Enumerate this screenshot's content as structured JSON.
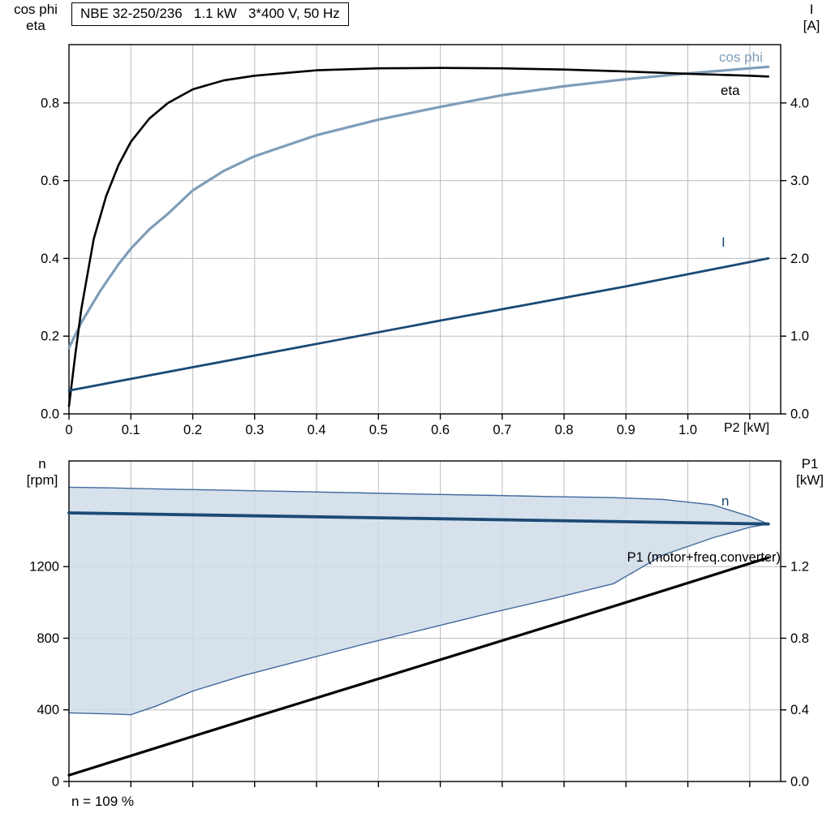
{
  "title_box": "NBE 32-250/236   1.1 kW   3*400 V, 50 Hz",
  "colors": {
    "cos_phi": "#7f9db9",
    "eta": "#000000",
    "current": "#1b4a74",
    "speed": "#1b4a74",
    "p1": "#000000",
    "band_fill": "#cfdce9",
    "band_edge": "#41699b",
    "grid": "#bdbdbd",
    "frame": "#000000"
  },
  "chart_data": [
    {
      "type": "line",
      "title": "NBE 32-250/236   1.1 kW   3*400 V, 50 Hz",
      "xlabel": "P2 [kW]",
      "ylabel_left": "cos phi / eta",
      "ylabel_right": "I [A]",
      "axis_titles": {
        "left": [
          "cos phi",
          "eta"
        ],
        "right": [
          "I",
          "[A]"
        ]
      },
      "xlim": [
        0,
        1.15
      ],
      "ylim_left": [
        0,
        0.95
      ],
      "ylim_right": [
        0,
        4.75
      ],
      "x_ticks": [
        0,
        0.1,
        0.2,
        0.3,
        0.4,
        0.5,
        0.6,
        0.7,
        0.8,
        0.9,
        1.0,
        1.1
      ],
      "x_tick_labels": [
        "0",
        "0.1",
        "0.2",
        "0.3",
        "0.4",
        "0.5",
        "0.6",
        "0.7",
        "0.8",
        "0.9",
        "1.0",
        ""
      ],
      "y_ticks_left": [
        0,
        0.2,
        0.4,
        0.6,
        0.8
      ],
      "y_tick_labels_left": [
        "0.0",
        "0.2",
        "0.4",
        "0.6",
        "0.8"
      ],
      "y_ticks_right": [
        0,
        1,
        2,
        3,
        4
      ],
      "y_tick_labels_right": [
        "0.0",
        "1.0",
        "2.0",
        "3.0",
        "4.0"
      ],
      "grid": true,
      "legend_position": "right-inside",
      "series": [
        {
          "name": "cos phi",
          "axis": "left",
          "color_key": "cos_phi",
          "width": 3.2,
          "x": [
            0,
            0.02,
            0.05,
            0.08,
            0.1,
            0.13,
            0.16,
            0.2,
            0.25,
            0.3,
            0.4,
            0.5,
            0.6,
            0.7,
            0.8,
            0.9,
            1.0,
            1.1,
            1.13
          ],
          "y": [
            0.17,
            0.235,
            0.315,
            0.385,
            0.425,
            0.475,
            0.515,
            0.575,
            0.625,
            0.663,
            0.717,
            0.757,
            0.79,
            0.82,
            0.843,
            0.861,
            0.876,
            0.889,
            0.893
          ]
        },
        {
          "name": "eta",
          "axis": "left",
          "color_key": "eta",
          "width": 2.6,
          "x": [
            0,
            0.01,
            0.02,
            0.04,
            0.06,
            0.08,
            0.1,
            0.13,
            0.16,
            0.2,
            0.25,
            0.3,
            0.4,
            0.5,
            0.6,
            0.7,
            0.8,
            0.9,
            1.0,
            1.1,
            1.13
          ],
          "y": [
            0.02,
            0.15,
            0.27,
            0.45,
            0.56,
            0.64,
            0.7,
            0.76,
            0.8,
            0.835,
            0.858,
            0.87,
            0.884,
            0.889,
            0.89,
            0.889,
            0.886,
            0.881,
            0.875,
            0.87,
            0.868
          ]
        },
        {
          "name": "I",
          "axis": "right",
          "color_key": "current",
          "width": 2.8,
          "x": [
            0,
            0.3,
            0.6,
            0.9,
            1.13
          ],
          "y": [
            0.3,
            0.75,
            1.2,
            1.64,
            2.0
          ]
        }
      ],
      "curve_labels": {
        "cos_phi": "cos phi",
        "eta": "eta",
        "current": "I"
      }
    },
    {
      "type": "line",
      "title": "",
      "xlabel": "",
      "ylabel_left": "n [rpm]",
      "ylabel_right": "P1 [kW]",
      "axis_titles": {
        "left": [
          "n",
          "[rpm]"
        ],
        "right": [
          "P1",
          "[kW]"
        ]
      },
      "xlim": [
        0,
        1.15
      ],
      "ylim_left": [
        0,
        1790
      ],
      "ylim_right": [
        0,
        1.79
      ],
      "x_ticks": [
        0,
        0.1,
        0.2,
        0.3,
        0.4,
        0.5,
        0.6,
        0.7,
        0.8,
        0.9,
        1.0,
        1.1
      ],
      "x_tick_labels": [
        "",
        "",
        "",
        "",
        "",
        "",
        "",
        "",
        "",
        "",
        "",
        ""
      ],
      "y_ticks_left": [
        0,
        400,
        800,
        1200
      ],
      "y_tick_labels_left": [
        "0",
        "400",
        "800",
        "1200"
      ],
      "y_ticks_right": [
        0,
        0.4,
        0.8,
        1.2
      ],
      "y_tick_labels_right": [
        "0.0",
        "0.4",
        "0.8",
        "1.2"
      ],
      "grid": true,
      "band": {
        "x": [
          0,
          0.06,
          0.1,
          0.14,
          0.2,
          0.28,
          0.38,
          0.48,
          0.58,
          0.68,
          0.78,
          0.88,
          0.96,
          1.04,
          1.1,
          1.13
        ],
        "upper": [
          1643,
          1640,
          1637,
          1634,
          1630,
          1625,
          1618,
          1611,
          1604,
          1598,
          1591,
          1585,
          1575,
          1545,
          1480,
          1438
        ],
        "lower": [
          383,
          378,
          373,
          420,
          505,
          590,
          680,
          770,
          855,
          940,
          1020,
          1105,
          1265,
          1360,
          1420,
          1438
        ]
      },
      "series": [
        {
          "name": "n",
          "axis": "left",
          "color_key": "speed",
          "width": 3.8,
          "x": [
            0,
            1.13
          ],
          "y": [
            1500,
            1438
          ]
        },
        {
          "name": "P1 (motor+freq.converter)",
          "axis": "right",
          "color_key": "p1",
          "width": 3.2,
          "x": [
            0,
            0.3,
            0.6,
            0.9,
            1.13
          ],
          "y": [
            0.035,
            0.36,
            0.68,
            1.0,
            1.25
          ]
        }
      ],
      "curve_labels": {
        "speed": "n",
        "p1": "P1 (motor+freq.converter)"
      },
      "footnote": "n = 109 %"
    }
  ]
}
